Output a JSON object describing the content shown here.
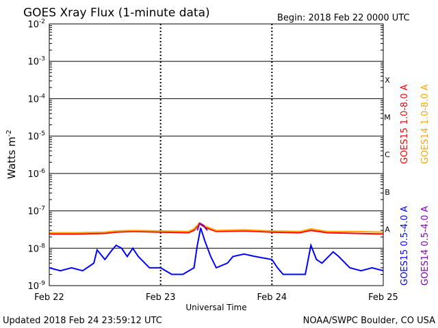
{
  "title": "GOES Xray Flux (1-minute data)",
  "begin_label": "Begin:  2018 Feb 22 0000 UTC",
  "updated_label": "Updated 2018 Feb 24 23:59:12 UTC",
  "credit_label": "NOAA/SWPC Boulder, CO USA",
  "colors": {
    "goes15_long": "#ff0000",
    "goes14_long": "#ffa500",
    "goes15_short": "#0000ff",
    "goes14_short": "#8000c0",
    "background": "#ffffff",
    "gridlines": "#000000"
  },
  "chart_data": {
    "type": "line",
    "title": "GOES Xray Flux (1-minute data)",
    "xlabel": "Universal Time",
    "ylabel_base": "Watts m",
    "ylabel_exp": "-2",
    "y_scale": "log",
    "ylim": [
      1e-09,
      0.01
    ],
    "y_ticks": [
      {
        "value": 0.01,
        "base": "10",
        "exp": "-2"
      },
      {
        "value": 0.001,
        "base": "10",
        "exp": "-3"
      },
      {
        "value": 0.0001,
        "base": "10",
        "exp": "-4"
      },
      {
        "value": 1e-05,
        "base": "10",
        "exp": "-5"
      },
      {
        "value": 1e-06,
        "base": "10",
        "exp": "-6"
      },
      {
        "value": 1e-07,
        "base": "10",
        "exp": "-7"
      },
      {
        "value": 1e-08,
        "base": "10",
        "exp": "-8"
      },
      {
        "value": 1e-09,
        "base": "10",
        "exp": "-9"
      }
    ],
    "x_ticks": [
      "Feb 22",
      "Feb 23",
      "Feb 24",
      "Feb 25"
    ],
    "xlim_days": [
      0,
      3
    ],
    "grid": true,
    "flare_classes": [
      {
        "label": "X",
        "value": 0.0001
      },
      {
        "label": "M",
        "value": 1e-05
      },
      {
        "label": "C",
        "value": 1e-06
      },
      {
        "label": "B",
        "value": 1e-07
      },
      {
        "label": "A",
        "value": 1e-08
      }
    ],
    "legend_placement": "right",
    "series": [
      {
        "name": "GOES15 1.0-8.0 A",
        "color": "#ff0000",
        "values": [
          [
            0.0,
            2.4e-08
          ],
          [
            0.25,
            2.4e-08
          ],
          [
            0.5,
            2.5e-08
          ],
          [
            0.6,
            2.7e-08
          ],
          [
            0.75,
            2.8e-08
          ],
          [
            1.0,
            2.7e-08
          ],
          [
            1.25,
            2.6e-08
          ],
          [
            1.3,
            3e-08
          ],
          [
            1.35,
            4.5e-08
          ],
          [
            1.4,
            3.6e-08
          ],
          [
            1.5,
            2.8e-08
          ],
          [
            1.75,
            2.9e-08
          ],
          [
            2.0,
            2.7e-08
          ],
          [
            2.25,
            2.6e-08
          ],
          [
            2.35,
            3e-08
          ],
          [
            2.5,
            2.6e-08
          ],
          [
            2.75,
            2.5e-08
          ],
          [
            3.0,
            2.4e-08
          ]
        ]
      },
      {
        "name": "GOES14 1.0-8.0 A",
        "color": "#ffa500",
        "values": [
          [
            0.0,
            2.6e-08
          ],
          [
            0.25,
            2.6e-08
          ],
          [
            0.5,
            2.7e-08
          ],
          [
            0.6,
            2.9e-08
          ],
          [
            0.75,
            3e-08
          ],
          [
            1.0,
            2.9e-08
          ],
          [
            1.25,
            2.8e-08
          ],
          [
            1.3,
            3.3e-08
          ],
          [
            1.35,
            4.8e-08
          ],
          [
            1.4,
            3.9e-08
          ],
          [
            1.5,
            3e-08
          ],
          [
            1.75,
            3.1e-08
          ],
          [
            2.0,
            2.9e-08
          ],
          [
            2.25,
            2.8e-08
          ],
          [
            2.35,
            3.3e-08
          ],
          [
            2.5,
            2.8e-08
          ],
          [
            2.75,
            2.8e-08
          ],
          [
            3.0,
            2.7e-08
          ]
        ]
      },
      {
        "name": "GOES15 0.5-4.0 A",
        "color": "#0000ff",
        "values": [
          [
            0.0,
            3e-09
          ],
          [
            0.1,
            2.5e-09
          ],
          [
            0.2,
            3e-09
          ],
          [
            0.3,
            2.5e-09
          ],
          [
            0.4,
            4e-09
          ],
          [
            0.43,
            9e-09
          ],
          [
            0.5,
            5e-09
          ],
          [
            0.55,
            8e-09
          ],
          [
            0.6,
            1.2e-08
          ],
          [
            0.65,
            1e-08
          ],
          [
            0.7,
            6e-09
          ],
          [
            0.75,
            1e-08
          ],
          [
            0.8,
            6e-09
          ],
          [
            0.9,
            3e-09
          ],
          [
            1.0,
            3e-09
          ],
          [
            1.1,
            2e-09
          ],
          [
            1.2,
            2e-09
          ],
          [
            1.3,
            3e-09
          ],
          [
            1.33,
            1.2e-08
          ],
          [
            1.36,
            3.5e-08
          ],
          [
            1.4,
            1.5e-08
          ],
          [
            1.45,
            6e-09
          ],
          [
            1.5,
            3e-09
          ],
          [
            1.6,
            4e-09
          ],
          [
            1.65,
            6e-09
          ],
          [
            1.75,
            7e-09
          ],
          [
            1.85,
            6e-09
          ],
          [
            2.0,
            5e-09
          ],
          [
            2.05,
            3e-09
          ],
          [
            2.1,
            2e-09
          ],
          [
            2.2,
            2e-09
          ],
          [
            2.3,
            2e-09
          ],
          [
            2.35,
            1.2e-08
          ],
          [
            2.4,
            5e-09
          ],
          [
            2.45,
            4e-09
          ],
          [
            2.55,
            8e-09
          ],
          [
            2.6,
            6e-09
          ],
          [
            2.7,
            3e-09
          ],
          [
            2.8,
            2.5e-09
          ],
          [
            2.9,
            3e-09
          ],
          [
            3.0,
            2.5e-09
          ]
        ]
      },
      {
        "name": "GOES14 0.5-4.0 A",
        "color": "#8000c0",
        "values": [
          [
            1.33,
            3e-08
          ],
          [
            1.35,
            4.6e-08
          ],
          [
            1.38,
            4.2e-08
          ],
          [
            1.42,
            3e-08
          ]
        ]
      }
    ]
  }
}
